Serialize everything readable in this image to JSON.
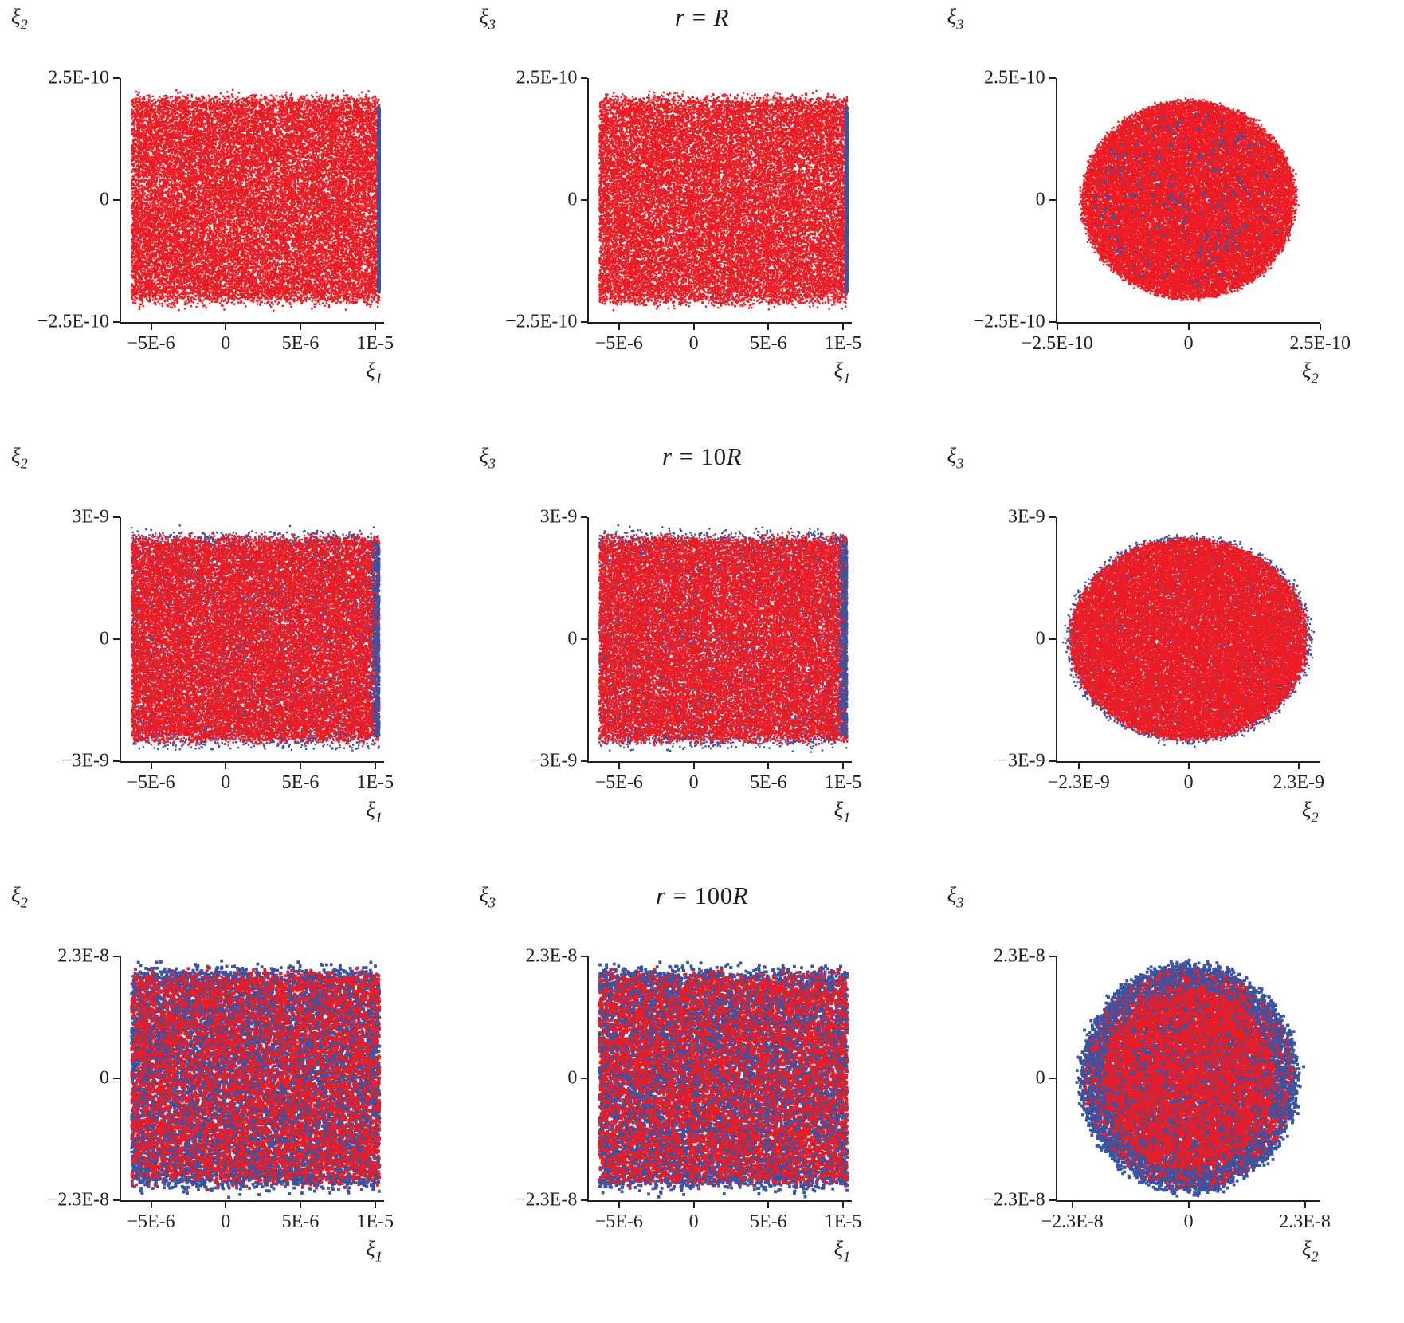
{
  "figure": {
    "background": "#ffffff",
    "colors": {
      "red": "#ed1c24",
      "blue": "#3a54a4",
      "axis": "#231f20"
    },
    "rows": [
      {
        "title_text": "r = R",
        "lhs": "r",
        "eq": "=",
        "coef": "",
        "unit": "R"
      },
      {
        "title_text": "r = 10R",
        "lhs": "r",
        "eq": "=",
        "coef": "10",
        "unit": "R"
      },
      {
        "title_text": "r = 100R",
        "lhs": "r",
        "eq": "=",
        "coef": "100",
        "unit": "R"
      }
    ]
  },
  "chart_data": [
    {
      "type": "scatter",
      "panel": "xi2-vs-xi1-at-r-R",
      "row_title": "r = R",
      "xlabel_base": "ξ",
      "xlabel_sub": "1",
      "ylabel_base": "ξ",
      "ylabel_sub": "2",
      "xlim": [
        -7e-06,
        1.06e-05
      ],
      "ylim": [
        -2.5e-10,
        2.5e-10
      ],
      "xticks": [
        {
          "v": -5e-06,
          "label": "−5E-6"
        },
        {
          "v": 0,
          "label": "0"
        },
        {
          "v": 5e-06,
          "label": "5E-6"
        },
        {
          "v": 1e-05,
          "label": "1E-5"
        }
      ],
      "yticks": [
        {
          "v": 2.5e-10,
          "label": "2.5E-10"
        },
        {
          "v": 0,
          "label": "0"
        },
        {
          "v": -2.5e-10,
          "label": "−2.5E-10"
        }
      ],
      "grid": false,
      "legend": "none",
      "seed": 101,
      "series": [
        {
          "name": "numerical-set-red",
          "color": "#ed1c24",
          "dist": "band",
          "n": 26000,
          "x": [
            -6.3e-06,
            1.03e-05
          ],
          "yhalf": 2.05e-10,
          "yfuzz": 9e-12,
          "dot": 1.2
        },
        {
          "name": "analytical-set-blue",
          "color": "#3a54a4",
          "dist": "vstrip",
          "n": 2200,
          "xc": 1.032e-05,
          "xspread": 6e-08,
          "yhalf": 1.9e-10,
          "dot": 1.2
        }
      ]
    },
    {
      "type": "scatter",
      "panel": "xi3-vs-xi1-at-r-R",
      "row_title": "r = R",
      "xlabel_base": "ξ",
      "xlabel_sub": "1",
      "ylabel_base": "ξ",
      "ylabel_sub": "3",
      "xlim": [
        -7e-06,
        1.06e-05
      ],
      "ylim": [
        -2.5e-10,
        2.5e-10
      ],
      "xticks": [
        {
          "v": -5e-06,
          "label": "−5E-6"
        },
        {
          "v": 0,
          "label": "0"
        },
        {
          "v": 5e-06,
          "label": "5E-6"
        },
        {
          "v": 1e-05,
          "label": "1E-5"
        }
      ],
      "yticks": [
        {
          "v": 2.5e-10,
          "label": "2.5E-10"
        },
        {
          "v": 0,
          "label": "0"
        },
        {
          "v": -2.5e-10,
          "label": "−2.5E-10"
        }
      ],
      "grid": false,
      "legend": "none",
      "seed": 102,
      "series": [
        {
          "name": "numerical-set-red",
          "color": "#ed1c24",
          "dist": "band",
          "n": 26000,
          "x": [
            -6.3e-06,
            1.03e-05
          ],
          "yhalf": 2.05e-10,
          "yfuzz": 9e-12,
          "dot": 1.2
        },
        {
          "name": "analytical-set-blue",
          "color": "#3a54a4",
          "dist": "vstrip",
          "n": 2200,
          "xc": 1.032e-05,
          "xspread": 6e-08,
          "yhalf": 1.9e-10,
          "dot": 1.2
        }
      ]
    },
    {
      "type": "scatter",
      "panel": "xi3-vs-xi2-at-r-R",
      "row_title": "r = R",
      "xlabel_base": "ξ",
      "xlabel_sub": "2",
      "ylabel_base": "ξ",
      "ylabel_sub": "3",
      "xlim": [
        -2.5e-10,
        2.5e-10
      ],
      "ylim": [
        -2.5e-10,
        2.5e-10
      ],
      "xticks": [
        {
          "v": -2.5e-10,
          "label": "−2.5E-10"
        },
        {
          "v": 0,
          "label": "0"
        },
        {
          "v": 2.5e-10,
          "label": "2.5E-10"
        }
      ],
      "yticks": [
        {
          "v": 2.5e-10,
          "label": "2.5E-10"
        },
        {
          "v": 0,
          "label": "0"
        },
        {
          "v": -2.5e-10,
          "label": "−2.5E-10"
        }
      ],
      "grid": false,
      "legend": "none",
      "seed": 103,
      "series": [
        {
          "name": "numerical-set-red",
          "color": "#ed1c24",
          "dist": "disk",
          "n": 30000,
          "R": 2.02e-10,
          "fuzz": 4e-12,
          "dot": 1.2
        },
        {
          "name": "analytical-set-blue",
          "color": "#3a54a4",
          "dist": "disk",
          "n": 230,
          "R": 1.8e-10,
          "fuzz": 0,
          "dot": 1.7
        }
      ]
    },
    {
      "type": "scatter",
      "panel": "xi2-vs-xi1-at-r-10R",
      "row_title": "r = 10R",
      "xlabel_base": "ξ",
      "xlabel_sub": "1",
      "ylabel_base": "ξ",
      "ylabel_sub": "2",
      "xlim": [
        -7e-06,
        1.06e-05
      ],
      "ylim": [
        -3e-09,
        3e-09
      ],
      "xticks": [
        {
          "v": -5e-06,
          "label": "−5E-6"
        },
        {
          "v": 0,
          "label": "0"
        },
        {
          "v": 5e-06,
          "label": "5E-6"
        },
        {
          "v": 1e-05,
          "label": "1E-5"
        }
      ],
      "yticks": [
        {
          "v": 3e-09,
          "label": "3E-9"
        },
        {
          "v": 0,
          "label": "0"
        },
        {
          "v": -3e-09,
          "label": "−3E-9"
        }
      ],
      "grid": false,
      "legend": "none",
      "seed": 104,
      "series": [
        {
          "name": "analytical-set-blue",
          "color": "#3a54a4",
          "dist": "band",
          "n": 8000,
          "x": [
            -6.3e-06,
            1.03e-05
          ],
          "yhalf": 2.56e-09,
          "yfuzz": 1.1e-10,
          "dot": 1.2
        },
        {
          "name": "numerical-set-red",
          "color": "#ed1c24",
          "dist": "band",
          "n": 26000,
          "x": [
            -6.3e-06,
            1.03e-05
          ],
          "yhalf": 2.45e-09,
          "yfuzz": 9e-11,
          "dot": 1.2
        },
        {
          "name": "analytical-set-blue-edge",
          "color": "#3a54a4",
          "dist": "vstrip",
          "n": 700,
          "xc": 1.03e-05,
          "xspread": 2.5e-07,
          "yhalf": 2.4e-09,
          "dot": 1.2
        }
      ]
    },
    {
      "type": "scatter",
      "panel": "xi3-vs-xi1-at-r-10R",
      "row_title": "r = 10R",
      "xlabel_base": "ξ",
      "xlabel_sub": "1",
      "ylabel_base": "ξ",
      "ylabel_sub": "3",
      "xlim": [
        -7e-06,
        1.06e-05
      ],
      "ylim": [
        -3e-09,
        3e-09
      ],
      "xticks": [
        {
          "v": -5e-06,
          "label": "−5E-6"
        },
        {
          "v": 0,
          "label": "0"
        },
        {
          "v": 5e-06,
          "label": "5E-6"
        },
        {
          "v": 1e-05,
          "label": "1E-5"
        }
      ],
      "yticks": [
        {
          "v": 3e-09,
          "label": "3E-9"
        },
        {
          "v": 0,
          "label": "0"
        },
        {
          "v": -3e-09,
          "label": "−3E-9"
        }
      ],
      "grid": false,
      "legend": "none",
      "seed": 105,
      "series": [
        {
          "name": "analytical-set-blue",
          "color": "#3a54a4",
          "dist": "band",
          "n": 8000,
          "x": [
            -6.3e-06,
            1.03e-05
          ],
          "yhalf": 2.56e-09,
          "yfuzz": 1.1e-10,
          "dot": 1.2
        },
        {
          "name": "numerical-set-red",
          "color": "#ed1c24",
          "dist": "band",
          "n": 26000,
          "x": [
            -6.3e-06,
            1.03e-05
          ],
          "yhalf": 2.45e-09,
          "yfuzz": 9e-11,
          "dot": 1.2
        },
        {
          "name": "analytical-set-blue-edge",
          "color": "#3a54a4",
          "dist": "vstrip",
          "n": 700,
          "xc": 1.03e-05,
          "xspread": 2.5e-07,
          "yhalf": 2.4e-09,
          "dot": 1.2
        }
      ]
    },
    {
      "type": "scatter",
      "panel": "xi3-vs-xi2-at-r-10R",
      "row_title": "r = 10R",
      "xlabel_base": "ξ",
      "xlabel_sub": "2",
      "ylabel_base": "ξ",
      "ylabel_sub": "3",
      "xlim": [
        -2.75e-09,
        2.75e-09
      ],
      "ylim": [
        -3e-09,
        3e-09
      ],
      "xticks": [
        {
          "v": -2.3e-09,
          "label": "−2.3E-9"
        },
        {
          "v": 0,
          "label": "0"
        },
        {
          "v": 2.3e-09,
          "label": "2.3E-9"
        }
      ],
      "yticks": [
        {
          "v": 3e-09,
          "label": "3E-9"
        },
        {
          "v": 0,
          "label": "0"
        },
        {
          "v": -3e-09,
          "label": "−3E-9"
        }
      ],
      "grid": false,
      "legend": "none",
      "seed": 106,
      "series": [
        {
          "name": "analytical-set-blue",
          "color": "#3a54a4",
          "dist": "disk",
          "n": 8000,
          "R": 2.56e-09,
          "fuzz": 5e-11,
          "dot": 1.2
        },
        {
          "name": "numerical-set-red",
          "color": "#ed1c24",
          "dist": "disk",
          "n": 28000,
          "R": 2.47e-09,
          "fuzz": 4e-11,
          "dot": 1.2
        }
      ]
    },
    {
      "type": "scatter",
      "panel": "xi2-vs-xi1-at-r-100R",
      "row_title": "r = 100R",
      "xlabel_base": "ξ",
      "xlabel_sub": "1",
      "ylabel_base": "ξ",
      "ylabel_sub": "2",
      "xlim": [
        -7e-06,
        1.06e-05
      ],
      "ylim": [
        -2.3e-08,
        2.3e-08
      ],
      "xticks": [
        {
          "v": -5e-06,
          "label": "−5E-6"
        },
        {
          "v": 0,
          "label": "0"
        },
        {
          "v": 5e-06,
          "label": "5E-6"
        },
        {
          "v": 1e-05,
          "label": "1E-5"
        }
      ],
      "yticks": [
        {
          "v": 2.3e-08,
          "label": "2.3E-8"
        },
        {
          "v": 0,
          "label": "0"
        },
        {
          "v": -2.3e-08,
          "label": "−2.3E-8"
        }
      ],
      "grid": false,
      "legend": "none",
      "seed": 107,
      "series": [
        {
          "name": "analytical-set-blue",
          "color": "#3a54a4",
          "dist": "band",
          "n": 6000,
          "x": [
            -6.3e-06,
            1.03e-05
          ],
          "yhalf": 2.05e-08,
          "yfuzz": 9e-10,
          "dot": 1.9
        },
        {
          "name": "numerical-set-red",
          "color": "#ed1c24",
          "dist": "band",
          "n": 5500,
          "x": [
            -6.3e-06,
            1.03e-05
          ],
          "yhalf": 1.95e-08,
          "yfuzz": 7e-10,
          "dot": 1.9
        },
        {
          "name": "analytical-set-blue-mix",
          "color": "#3a54a4",
          "dist": "band",
          "n": 3500,
          "x": [
            -6.3e-06,
            1.03e-05
          ],
          "yhalf": 2e-08,
          "yfuzz": 5e-10,
          "dot": 1.9
        },
        {
          "name": "numerical-set-red-mix",
          "color": "#ed1c24",
          "dist": "band",
          "n": 2800,
          "x": [
            -6.3e-06,
            1.03e-05
          ],
          "yhalf": 1.9e-08,
          "yfuzz": 4e-10,
          "dot": 1.9
        }
      ]
    },
    {
      "type": "scatter",
      "panel": "xi3-vs-xi1-at-r-100R",
      "row_title": "r = 100R",
      "xlabel_base": "ξ",
      "xlabel_sub": "1",
      "ylabel_base": "ξ",
      "ylabel_sub": "3",
      "xlim": [
        -7e-06,
        1.06e-05
      ],
      "ylim": [
        -2.3e-08,
        2.3e-08
      ],
      "xticks": [
        {
          "v": -5e-06,
          "label": "−5E-6"
        },
        {
          "v": 0,
          "label": "0"
        },
        {
          "v": 5e-06,
          "label": "5E-6"
        },
        {
          "v": 1e-05,
          "label": "1E-5"
        }
      ],
      "yticks": [
        {
          "v": 2.3e-08,
          "label": "2.3E-8"
        },
        {
          "v": 0,
          "label": "0"
        },
        {
          "v": -2.3e-08,
          "label": "−2.3E-8"
        }
      ],
      "grid": false,
      "legend": "none",
      "seed": 108,
      "series": [
        {
          "name": "analytical-set-blue",
          "color": "#3a54a4",
          "dist": "band",
          "n": 6000,
          "x": [
            -6.3e-06,
            1.03e-05
          ],
          "yhalf": 2.05e-08,
          "yfuzz": 9e-10,
          "dot": 1.9
        },
        {
          "name": "numerical-set-red",
          "color": "#ed1c24",
          "dist": "band",
          "n": 5500,
          "x": [
            -6.3e-06,
            1.03e-05
          ],
          "yhalf": 1.95e-08,
          "yfuzz": 7e-10,
          "dot": 1.9
        },
        {
          "name": "analytical-set-blue-mix",
          "color": "#3a54a4",
          "dist": "band",
          "n": 3500,
          "x": [
            -6.3e-06,
            1.03e-05
          ],
          "yhalf": 2e-08,
          "yfuzz": 5e-10,
          "dot": 1.9
        },
        {
          "name": "numerical-set-red-mix",
          "color": "#ed1c24",
          "dist": "band",
          "n": 2800,
          "x": [
            -6.3e-06,
            1.03e-05
          ],
          "yhalf": 1.9e-08,
          "yfuzz": 4e-10,
          "dot": 1.9
        }
      ]
    },
    {
      "type": "scatter",
      "panel": "xi3-vs-xi2-at-r-100R",
      "row_title": "r = 100R",
      "xlabel_base": "ξ",
      "xlabel_sub": "2",
      "ylabel_base": "ξ",
      "ylabel_sub": "3",
      "xlim": [
        -2.6e-08,
        2.6e-08
      ],
      "ylim": [
        -2.3e-08,
        2.3e-08
      ],
      "xticks": [
        {
          "v": -2.3e-08,
          "label": "−2.3E-8"
        },
        {
          "v": 0,
          "label": "0"
        },
        {
          "v": 2.3e-08,
          "label": "2.3E-8"
        }
      ],
      "yticks": [
        {
          "v": 2.3e-08,
          "label": "2.3E-8"
        },
        {
          "v": 0,
          "label": "0"
        },
        {
          "v": -2.3e-08,
          "label": "−2.3E-8"
        }
      ],
      "grid": false,
      "legend": "none",
      "seed": 109,
      "series": [
        {
          "name": "analytical-set-blue",
          "color": "#3a54a4",
          "dist": "disk",
          "n": 6500,
          "R": 2.18e-08,
          "fuzz": 4e-10,
          "dot": 1.9
        },
        {
          "name": "numerical-set-red",
          "color": "#ed1c24",
          "dist": "disk",
          "n": 5500,
          "R": 2.05e-08,
          "fuzz": 3e-10,
          "dot": 1.9
        },
        {
          "name": "analytical-set-blue-mix",
          "color": "#3a54a4",
          "dist": "disk",
          "n": 3500,
          "R": 2.1e-08,
          "fuzz": 3e-10,
          "dot": 1.9
        },
        {
          "name": "numerical-set-red-mix",
          "color": "#ed1c24",
          "dist": "disk",
          "n": 2800,
          "R": 1.7e-08,
          "fuzz": 0,
          "dot": 1.9
        }
      ]
    }
  ]
}
